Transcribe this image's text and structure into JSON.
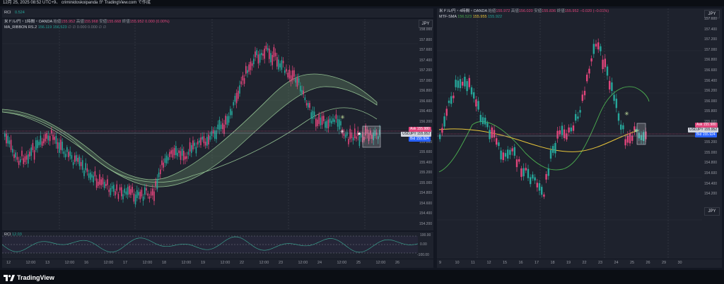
{
  "header": {
    "info": "12月 25, 2025 08:52 UTC+9、 criminidoskoipanda が TradingView.com で作成"
  },
  "left": {
    "top_indicator": {
      "name": "RCI",
      "value": "0.524"
    },
    "legend": {
      "title": "米ドル/円・1時間・OANDA",
      "ohlc_open_label": "始値",
      "ohlc_open": "155.952",
      "ohlc_high_label": "高値",
      "ohlc_high": "155.968",
      "ohlc_low_label": "安値",
      "ohlc_low": "155.668",
      "ohlc_close_label": "終値",
      "ohlc_close": "155.952",
      "change": "0.000 (0.00%)",
      "ribbon_name": "MA_RIBBON RS.2",
      "ribbon_v1": "156.119",
      "ribbon_v2": "156.523",
      "ribbon_rest": "∅  ∅  0.000  0.000  ∅  ∅"
    },
    "currency_btn": "JPY",
    "y_ticks": [
      "158.000",
      "157.800",
      "157.600",
      "157.400",
      "157.200",
      "157.000",
      "156.800",
      "156.600",
      "156.400",
      "156.200",
      "156.000",
      "155.800",
      "155.600",
      "155.400",
      "155.200",
      "155.000",
      "154.800",
      "154.600",
      "154.400",
      "154.200"
    ],
    "tags": {
      "ask_label": "Ask",
      "ask": "155.980",
      "symbol": "USDJPY",
      "price": "155.952",
      "bid_label": "Bid",
      "bid": "155.924"
    },
    "rci": {
      "name": "RCI",
      "value": "12.03",
      "ticks": [
        "100.00",
        "0.00",
        "-100.00"
      ]
    },
    "x_ticks": [
      "12",
      "12:00",
      "13",
      "12:00",
      "16",
      "12:00",
      "17",
      "12:00",
      "18",
      "12:00",
      "19",
      "12:00",
      "22",
      "12:00",
      "23",
      "12:00",
      "24",
      "12:00",
      "25",
      "12:00",
      "26"
    ]
  },
  "right": {
    "legend": {
      "title": "米ドル/円・4時間・OANDA",
      "ohlc_open_label": "始値",
      "ohlc_open": "155.972",
      "ohlc_high_label": "高値",
      "ohlc_high": "156.020",
      "ohlc_low_label": "安値",
      "ohlc_low": "155.836",
      "ohlc_close_label": "終値",
      "ohlc_close": "155.952",
      "change": "−0.020 (−0.01%)",
      "mtf_name": "MTF-SMA",
      "mtf_v1": "156.523",
      "mtf_v2": "155.955",
      "mtf_v3": "155.922"
    },
    "currency_btn": "JPY",
    "y_ticks": [
      "157.600",
      "157.400",
      "157.200",
      "157.000",
      "156.800",
      "156.600",
      "156.400",
      "156.200",
      "156.000",
      "155.800",
      "155.600",
      "155.400",
      "155.200",
      "155.000",
      "154.800",
      "154.600",
      "154.400",
      "154.200"
    ],
    "tags": {
      "ask_label": "Ask",
      "ask": "155.980",
      "symbol": "USDJPY",
      "price": "155.952",
      "bid_label": "Bid",
      "bid": "155.924"
    },
    "x_ticks": [
      "9",
      "10",
      "11",
      "12",
      "15",
      "16",
      "17",
      "18",
      "19",
      "22",
      "23",
      "24",
      "25",
      "26",
      "29",
      "30"
    ]
  },
  "footer": {
    "brand": "TradingView"
  },
  "colors": {
    "bg": "#131722",
    "pane": "#1e222d",
    "up": "#26a69a",
    "down": "#e0457b",
    "ribbon": "#8fbc8f",
    "sma_yellow": "#e8c53a",
    "rci_line": "#3a9e8c"
  }
}
